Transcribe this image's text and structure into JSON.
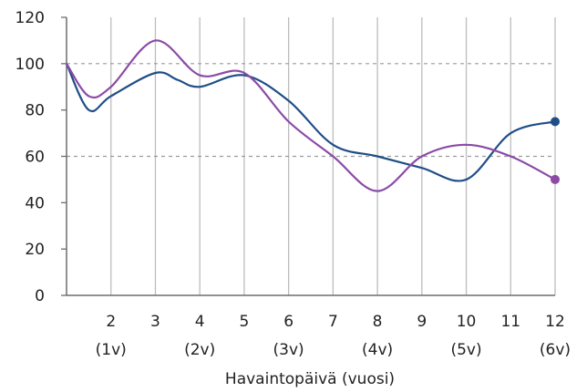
{
  "chart_data": {
    "type": "line",
    "xlabel": "Havaintopäivä (vuosi)",
    "ylabel": "",
    "xlim": [
      1,
      12
    ],
    "ylim": [
      0,
      120
    ],
    "y_ticks": [
      0,
      20,
      40,
      60,
      80,
      100,
      120
    ],
    "x_ticks": [
      {
        "x": 2,
        "label": "2",
        "sub": "(1v)"
      },
      {
        "x": 3,
        "label": "3",
        "sub": ""
      },
      {
        "x": 4,
        "label": "4",
        "sub": "(2v)"
      },
      {
        "x": 5,
        "label": "5",
        "sub": ""
      },
      {
        "x": 6,
        "label": "6",
        "sub": "(3v)"
      },
      {
        "x": 7,
        "label": "7",
        "sub": ""
      },
      {
        "x": 8,
        "label": "8",
        "sub": "(4v)"
      },
      {
        "x": 9,
        "label": "9",
        "sub": ""
      },
      {
        "x": 10,
        "label": "10",
        "sub": "(5v)"
      },
      {
        "x": 11,
        "label": "11",
        "sub": ""
      },
      {
        "x": 12,
        "label": "12",
        "sub": "(6v)"
      }
    ],
    "reference_lines": [
      100,
      60
    ],
    "vertical_gridlines": true,
    "series": [
      {
        "color": "#1f4e87",
        "points": [
          [
            1,
            100
          ],
          [
            1.5,
            80
          ],
          [
            2,
            86
          ],
          [
            3,
            96
          ],
          [
            3.5,
            93
          ],
          [
            4,
            90
          ],
          [
            5,
            95
          ],
          [
            6,
            84
          ],
          [
            7,
            65
          ],
          [
            8,
            60
          ],
          [
            9,
            55
          ],
          [
            10,
            50
          ],
          [
            11,
            70
          ],
          [
            12,
            75
          ]
        ]
      },
      {
        "color": "#8b4aa6",
        "points": [
          [
            1,
            100
          ],
          [
            1.5,
            86
          ],
          [
            2,
            90
          ],
          [
            3,
            110
          ],
          [
            4,
            95
          ],
          [
            5,
            96
          ],
          [
            6,
            75
          ],
          [
            7,
            60
          ],
          [
            8,
            45
          ],
          [
            9,
            60
          ],
          [
            10,
            65
          ],
          [
            11,
            60
          ],
          [
            12,
            50
          ]
        ]
      }
    ]
  }
}
